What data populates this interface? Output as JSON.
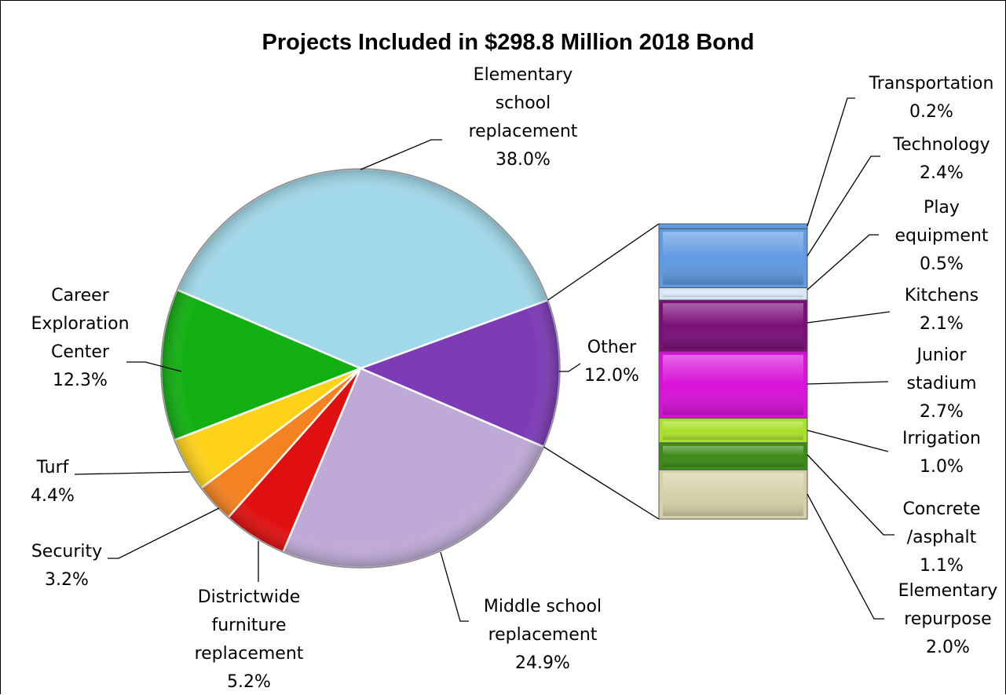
{
  "chart_data": {
    "type": "pie",
    "title": "Projects Included in $298.8 Million 2018 Bond",
    "pie_slices": [
      {
        "name": "Other",
        "label_lines": [
          "Other",
          "12.0%"
        ],
        "value": 12.0,
        "color": "#7d3bb5"
      },
      {
        "name": "Middle school replacement",
        "label_lines": [
          "Middle school",
          "replacement",
          "24.9%"
        ],
        "value": 24.9,
        "color": "#bfa9d6"
      },
      {
        "name": "Districtwide furniture replacement",
        "label_lines": [
          "Districtwide",
          "furniture",
          "replacement",
          "5.2%"
        ],
        "value": 5.2,
        "color": "#e01010"
      },
      {
        "name": "Security",
        "label_lines": [
          "Security",
          "3.2%"
        ],
        "value": 3.2,
        "color": "#f58220"
      },
      {
        "name": "Turf",
        "label_lines": [
          "Turf",
          "4.4%"
        ],
        "value": 4.4,
        "color": "#ffd21a"
      },
      {
        "name": "Career Exploration Center",
        "label_lines": [
          "Career",
          "Exploration",
          "Center",
          "12.3%"
        ],
        "value": 12.3,
        "color": "#12b012"
      },
      {
        "name": "Elementary school replacement",
        "label_lines": [
          "Elementary",
          "school",
          "replacement",
          "38.0%"
        ],
        "value": 38.0,
        "color": "#a2d9ea"
      }
    ],
    "breakout": {
      "parent": "Other",
      "segments": [
        {
          "name": "Transportation",
          "label_lines": [
            "Transportation",
            "0.2%"
          ],
          "value": 0.2,
          "color": "#5f9ae2"
        },
        {
          "name": "Technology",
          "label_lines": [
            "Technology",
            "2.4%"
          ],
          "value": 2.4,
          "color": "#5f9ae2"
        },
        {
          "name": "Play equipment",
          "label_lines": [
            "Play",
            "equipment",
            "0.5%"
          ],
          "value": 0.5,
          "color": "#d8e6f4"
        },
        {
          "name": "Kitchens",
          "label_lines": [
            "Kitchens",
            "2.1%"
          ],
          "value": 2.1,
          "color": "#7a0f78"
        },
        {
          "name": "Junior stadium",
          "label_lines": [
            "Junior",
            "stadium",
            "2.7%"
          ],
          "value": 2.7,
          "color": "#d811d8"
        },
        {
          "name": "Irrigation",
          "label_lines": [
            "Irrigation",
            "1.0%"
          ],
          "value": 1.0,
          "color": "#a8e02a"
        },
        {
          "name": "Concrete /asphalt",
          "label_lines": [
            "Concrete",
            "/asphalt",
            "1.1%"
          ],
          "value": 1.1,
          "color": "#3c8a18"
        },
        {
          "name": "Elementary repurpose",
          "label_lines": [
            "Elementary",
            "repurpose",
            "2.0%"
          ],
          "value": 2.0,
          "color": "#d6d0a8"
        }
      ]
    }
  }
}
